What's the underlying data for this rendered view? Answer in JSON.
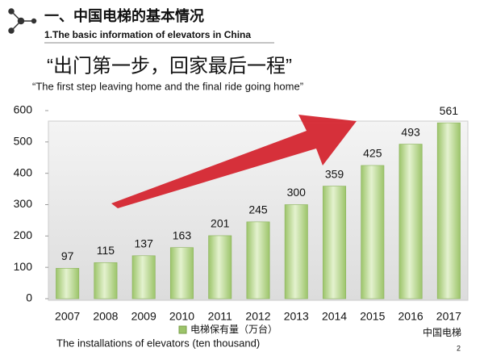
{
  "header": {
    "title": "一、中国电梯的基本情况",
    "subtitle": "1.The basic information of elevators in China",
    "quote": "“出门第一步，回家最后一程”",
    "quote_en": "“The first step leaving home and the final ride going home”"
  },
  "chart_data": {
    "type": "bar",
    "categories": [
      "2007",
      "2008",
      "2009",
      "2010",
      "2011",
      "2012",
      "2013",
      "2014",
      "2015",
      "2016",
      "2017"
    ],
    "series": [
      {
        "name": "电梯保有量（万台）",
        "color": "#9cc46a",
        "values": [
          97,
          115,
          137,
          163,
          201,
          245,
          300,
          359,
          425,
          493,
          561
        ]
      }
    ],
    "ylim": [
      0,
      600
    ],
    "yticks": [
      0,
      100,
      200,
      300,
      400,
      500,
      600
    ],
    "x_label": "The installations of elevators (ten thousand)"
  },
  "footer": {
    "watermark": "中国电梯",
    "page": "2"
  }
}
